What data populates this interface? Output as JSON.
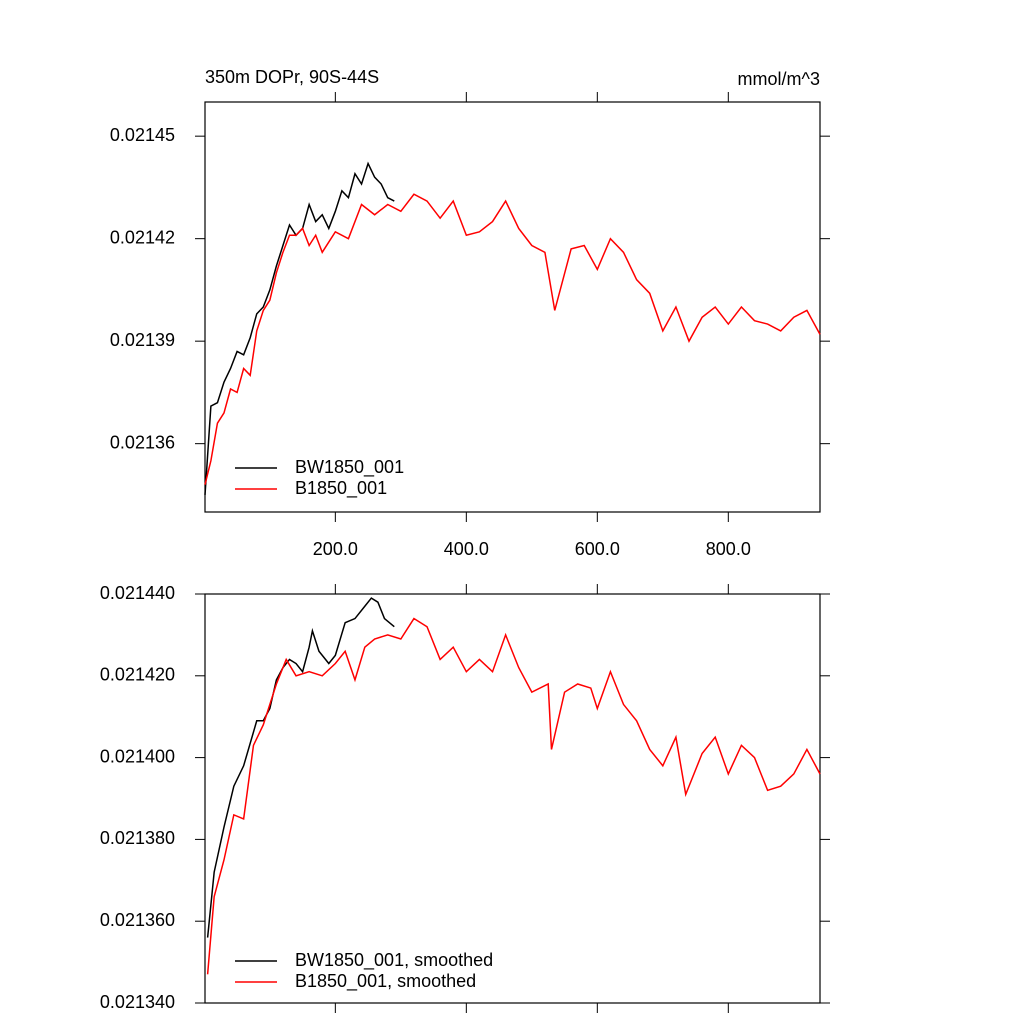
{
  "chart_data": [
    {
      "type": "line",
      "title": "350m DOPr, 90S-44S",
      "units": "mmol/m^3",
      "xlim": [
        1,
        940
      ],
      "ylim": [
        0.02134,
        0.02146
      ],
      "xticks": [
        {
          "value": 200,
          "label": "200.0"
        },
        {
          "value": 400,
          "label": "400.0"
        },
        {
          "value": 600,
          "label": "600.0"
        },
        {
          "value": 800,
          "label": "800.0"
        }
      ],
      "yticks": [
        0.02136,
        0.02139,
        0.02142,
        0.02145
      ],
      "series": [
        {
          "name": "BW1850_001",
          "color": "#000000",
          "x": [
            1,
            10,
            20,
            30,
            40,
            50,
            60,
            70,
            80,
            90,
            100,
            110,
            120,
            130,
            140,
            150,
            160,
            170,
            180,
            190,
            200,
            210,
            220,
            230,
            240,
            250,
            260,
            270,
            280,
            290
          ],
          "values": [
            0.021345,
            0.021371,
            0.021372,
            0.021378,
            0.021382,
            0.021387,
            0.021386,
            0.021391,
            0.021398,
            0.0214,
            0.021405,
            0.021412,
            0.021418,
            0.021424,
            0.021421,
            0.021423,
            0.02143,
            0.021425,
            0.021427,
            0.021423,
            0.021428,
            0.021434,
            0.021432,
            0.021439,
            0.021436,
            0.021442,
            0.021438,
            0.021436,
            0.021432,
            0.021431
          ]
        },
        {
          "name": "B1850_001",
          "color": "#ff0000",
          "x": [
            1,
            10,
            20,
            30,
            40,
            50,
            60,
            70,
            80,
            90,
            100,
            110,
            120,
            130,
            140,
            150,
            160,
            170,
            180,
            190,
            200,
            220,
            240,
            260,
            280,
            300,
            320,
            340,
            360,
            380,
            400,
            420,
            440,
            460,
            480,
            500,
            520,
            535,
            560,
            580,
            600,
            620,
            640,
            660,
            680,
            700,
            720,
            740,
            760,
            780,
            800,
            820,
            840,
            860,
            880,
            900,
            920,
            940
          ],
          "values": [
            0.021348,
            0.021355,
            0.021366,
            0.021369,
            0.021376,
            0.021375,
            0.021382,
            0.02138,
            0.021393,
            0.021399,
            0.021402,
            0.02141,
            0.021416,
            0.021421,
            0.021421,
            0.021423,
            0.021418,
            0.021421,
            0.021416,
            0.021419,
            0.021422,
            0.02142,
            0.02143,
            0.021427,
            0.02143,
            0.021428,
            0.021433,
            0.021431,
            0.021426,
            0.021431,
            0.021421,
            0.021422,
            0.021425,
            0.021431,
            0.021423,
            0.021418,
            0.021416,
            0.021399,
            0.021417,
            0.021418,
            0.021411,
            0.02142,
            0.021416,
            0.021408,
            0.021404,
            0.021393,
            0.0214,
            0.02139,
            0.021397,
            0.0214,
            0.021395,
            0.0214,
            0.021396,
            0.021395,
            0.021393,
            0.021397,
            0.021399,
            0.021392
          ]
        }
      ]
    },
    {
      "type": "line",
      "xlim": [
        1,
        940
      ],
      "ylim": [
        0.02134,
        0.02144
      ],
      "xticks": [
        200,
        400,
        600,
        800
      ],
      "yticks": [
        {
          "value": 0.02134,
          "label": "0.021340"
        },
        {
          "value": 0.02136,
          "label": "0.021360"
        },
        {
          "value": 0.02138,
          "label": "0.021380"
        },
        {
          "value": 0.0214,
          "label": "0.021400"
        },
        {
          "value": 0.02142,
          "label": "0.021420"
        },
        {
          "value": 0.02144,
          "label": "0.021440"
        }
      ],
      "series": [
        {
          "name": "BW1850_001, smoothed",
          "color": "#000000",
          "x": [
            5,
            15,
            30,
            45,
            60,
            80,
            90,
            100,
            110,
            120,
            130,
            140,
            150,
            160,
            165,
            175,
            190,
            200,
            215,
            230,
            245,
            255,
            265,
            275,
            290
          ],
          "values": [
            0.021356,
            0.021372,
            0.021383,
            0.021393,
            0.021398,
            0.021409,
            0.021409,
            0.021412,
            0.021419,
            0.021422,
            0.021424,
            0.021423,
            0.021421,
            0.021427,
            0.021431,
            0.021426,
            0.021423,
            0.021425,
            0.021433,
            0.021434,
            0.021437,
            0.021439,
            0.021438,
            0.021434,
            0.021432
          ]
        },
        {
          "name": "B1850_001, smoothed",
          "color": "#ff0000",
          "x": [
            5,
            15,
            30,
            45,
            60,
            75,
            90,
            110,
            125,
            140,
            160,
            180,
            200,
            215,
            230,
            245,
            260,
            280,
            300,
            320,
            340,
            360,
            380,
            400,
            420,
            440,
            460,
            480,
            500,
            525,
            530,
            550,
            570,
            590,
            600,
            620,
            640,
            660,
            680,
            700,
            720,
            735,
            760,
            780,
            800,
            820,
            840,
            860,
            880,
            900,
            920,
            940
          ],
          "values": [
            0.021347,
            0.021366,
            0.021375,
            0.021386,
            0.021385,
            0.021403,
            0.021408,
            0.021418,
            0.021424,
            0.02142,
            0.021421,
            0.02142,
            0.021423,
            0.021426,
            0.021419,
            0.021427,
            0.021429,
            0.02143,
            0.021429,
            0.021434,
            0.021432,
            0.021424,
            0.021427,
            0.021421,
            0.021424,
            0.021421,
            0.02143,
            0.021422,
            0.021416,
            0.021418,
            0.021402,
            0.021416,
            0.021418,
            0.021417,
            0.021412,
            0.021421,
            0.021413,
            0.021409,
            0.021402,
            0.021398,
            0.021405,
            0.021391,
            0.021401,
            0.021405,
            0.021396,
            0.021403,
            0.0214,
            0.021392,
            0.021393,
            0.021396,
            0.021402,
            0.021396
          ]
        }
      ]
    }
  ]
}
